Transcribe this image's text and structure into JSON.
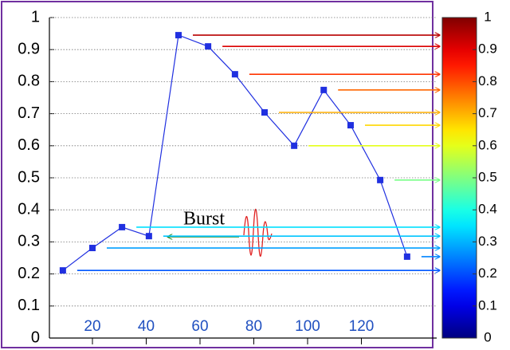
{
  "chart_data": {
    "type": "line",
    "x": [
      9,
      20,
      31,
      41,
      52,
      63,
      73,
      84,
      95,
      106,
      116,
      127,
      137
    ],
    "series": [
      {
        "color": "#2030e0",
        "values": [
          0.211,
          0.281,
          0.346,
          0.318,
          0.945,
          0.91,
          0.823,
          0.704,
          0.6,
          0.774,
          0.664,
          0.493,
          0.254
        ]
      }
    ],
    "xlim": [
      4,
      148
    ],
    "xticks": [
      20,
      40,
      60,
      80,
      100,
      120
    ],
    "ylim": [
      0,
      1
    ],
    "yticks": [
      0,
      0.1,
      0.2,
      0.3,
      0.4,
      0.5,
      0.6,
      0.7,
      0.8,
      0.9,
      1
    ],
    "grid": true,
    "annotation": "Burst",
    "colorbar": {
      "colormap": "jet",
      "clim": [
        0,
        1
      ],
      "ticks": [
        0,
        0.1,
        0.2,
        0.3,
        0.4,
        0.5,
        0.6,
        0.7,
        0.8,
        0.9,
        1
      ]
    }
  }
}
